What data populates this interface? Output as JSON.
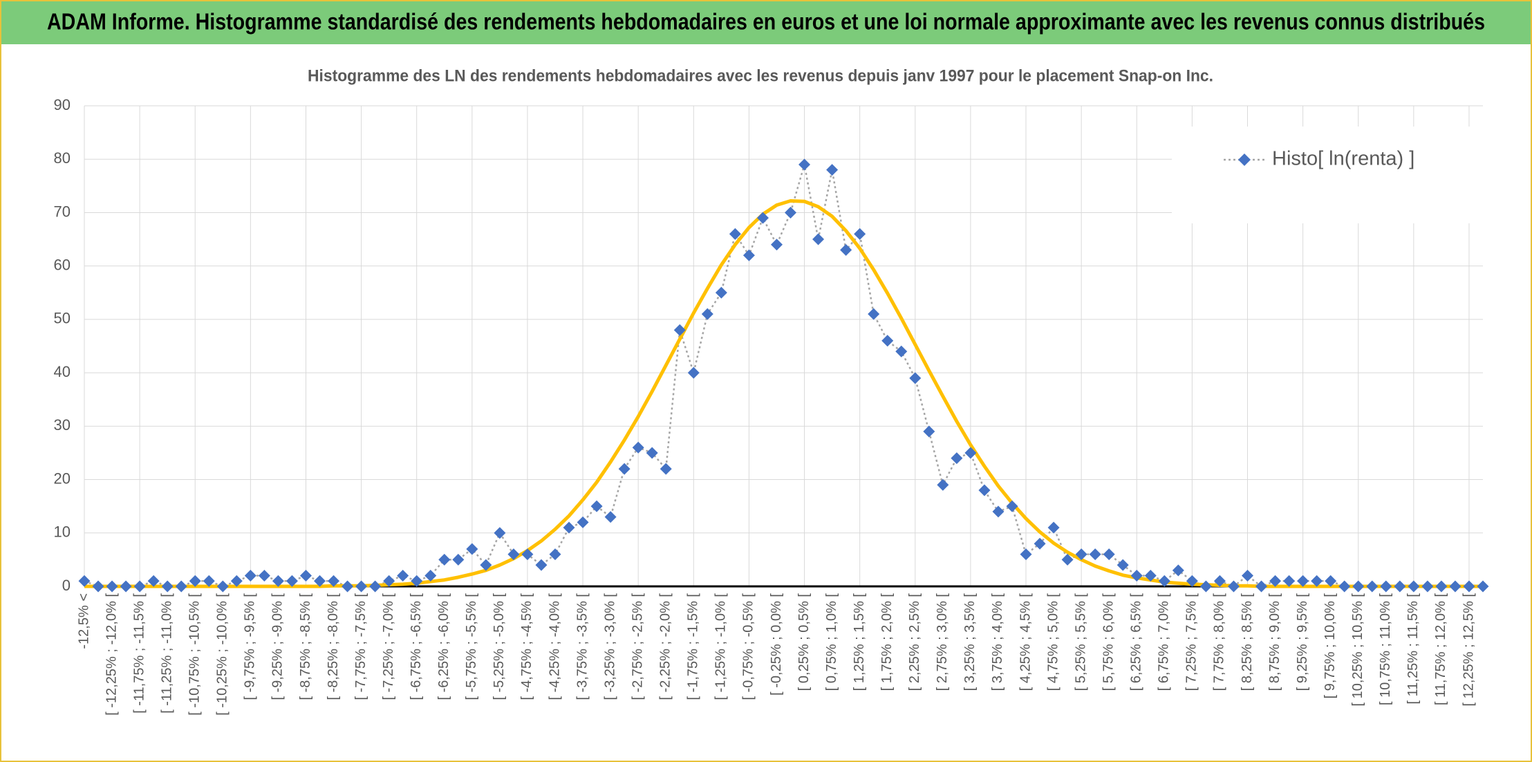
{
  "header": {
    "title": "ADAM Informe. Histogramme standardisé des rendements hebdomadaires en euros et une loi normale approximante avec les revenus connus distribués"
  },
  "chart_data": {
    "type": "line",
    "title": "Histogramme des LN des rendements hebdomadaires avec les revenus depuis janv 1997 pour le placement Snap-on Inc.",
    "categories": [
      "-12,5% <",
      null,
      "[ -12,25% ; -12,0% [",
      null,
      "[ -11,75% ; -11,5% [",
      null,
      "[ -11,25% ; -11,0% [",
      null,
      "[ -10,75% ; -10,5% [",
      null,
      "[ -10,25% ; -10,0% [",
      null,
      "[ -9,75% ; -9,5% [",
      null,
      "[ -9,25% ; -9,0% [",
      null,
      "[ -8,75% ; -8,5% [",
      null,
      "[ -8,25% ; -8,0% [",
      null,
      "[ -7,75% ; -7,5% [",
      null,
      "[ -7,25% ; -7,0% [",
      null,
      "[ -6,75% ; -6,5% [",
      null,
      "[ -6,25% ; -6,0% [",
      null,
      "[ -5,75% ; -5,5% [",
      null,
      "[ -5,25% ; -5,0% [",
      null,
      "[ -4,75% ; -4,5% [",
      null,
      "[ -4,25% ; -4,0% [",
      null,
      "[ -3,75% ; -3,5% [",
      null,
      "[ -3,25% ; -3,0% [",
      null,
      "[ -2,75% ; -2,5% [",
      null,
      "[ -2,25% ; -2,0% [",
      null,
      "[ -1,75% ; -1,5% [",
      null,
      "[ -1,25% ; -1,0% [",
      null,
      "[ -0,75% ; -0,5% [",
      null,
      "[ -0,25% ; 0,0% [",
      null,
      "[ 0,25% ; 0,5% [",
      null,
      "[ 0,75% ; 1,0% [",
      null,
      "[ 1,25% ; 1,5% [",
      null,
      "[ 1,75% ; 2,0% [",
      null,
      "[ 2,25% ; 2,5% [",
      null,
      "[ 2,75% ; 3,0% [",
      null,
      "[ 3,25% ; 3,5% [",
      null,
      "[ 3,75% ; 4,0% [",
      null,
      "[ 4,25% ; 4,5% [",
      null,
      "[ 4,75% ; 5,0% [",
      null,
      "[ 5,25% ; 5,5% [",
      null,
      "[ 5,75% ; 6,0% [",
      null,
      "[ 6,25% ; 6,5% [",
      null,
      "[ 6,75% ; 7,0% [",
      null,
      "[ 7,25% ; 7,5% [",
      null,
      "[ 7,75% ; 8,0% [",
      null,
      "[ 8,25% ; 8,5% [",
      null,
      "[ 8,75% ; 9,0% [",
      null,
      "[ 9,25% ; 9,5% [",
      null,
      "[ 9,75% ; 10,0% [",
      null,
      "[ 10,25% ; 10,5% [",
      null,
      "[ 10,75% ; 11,0% [",
      null,
      "[ 11,25% ; 11,5% [",
      null,
      "[ 11,75% ; 12,0% [",
      null,
      "[ 12,25% ; 12,5% [",
      null
    ],
    "series": [
      {
        "name": "Histo[ ln(renta) ]",
        "color": "#4472c4",
        "line_color": "#a5a5a5",
        "line_style": "dotted",
        "marker": "diamond",
        "values": [
          1,
          0,
          0,
          0,
          0,
          1,
          0,
          0,
          1,
          1,
          0,
          1,
          2,
          2,
          1,
          1,
          2,
          1,
          1,
          0,
          0,
          0,
          1,
          2,
          1,
          2,
          5,
          5,
          7,
          4,
          10,
          6,
          6,
          4,
          6,
          11,
          12,
          15,
          13,
          22,
          26,
          25,
          22,
          48,
          40,
          51,
          55,
          66,
          62,
          69,
          64,
          70,
          79,
          65,
          78,
          63,
          66,
          51,
          46,
          44,
          39,
          29,
          19,
          24,
          25,
          18,
          14,
          15,
          6,
          8,
          11,
          5,
          6,
          6,
          6,
          4,
          2,
          2,
          1,
          3,
          1,
          0,
          1,
          0,
          2,
          0,
          1,
          1,
          1,
          1,
          1,
          0,
          0,
          0,
          0,
          0,
          0,
          0,
          0,
          0,
          0,
          0
        ]
      },
      {
        "color": "#ffc000",
        "line_style": "solid",
        "values": [
          0,
          0,
          0,
          0,
          0,
          0,
          0,
          0,
          0,
          0,
          0,
          0,
          0,
          0,
          0,
          0,
          0,
          0,
          0.1,
          0.1,
          0.1,
          0.2,
          0.3,
          0.4,
          0.6,
          0.9,
          1.2,
          1.7,
          2.3,
          3.0,
          4.0,
          5.2,
          6.7,
          8.5,
          10.7,
          13.2,
          16.2,
          19.5,
          23.3,
          27.4,
          31.8,
          36.5,
          41.4,
          46.3,
          51.2,
          55.8,
          60.2,
          64.0,
          67.2,
          69.7,
          71.4,
          72.2,
          72.1,
          71.1,
          69.3,
          66.6,
          63.3,
          59.3,
          54.9,
          50.2,
          45.3,
          40.4,
          35.6,
          30.9,
          26.5,
          22.5,
          18.8,
          15.6,
          12.7,
          10.2,
          8.1,
          6.4,
          5.0,
          3.8,
          2.9,
          2.1,
          1.6,
          1.2,
          0.8,
          0.6,
          0.4,
          0.3,
          0.2,
          0.1,
          0.1,
          0,
          0,
          0,
          0,
          0,
          0,
          0,
          0,
          0,
          0,
          0,
          0,
          0,
          0,
          0,
          0,
          0
        ]
      }
    ],
    "ylim": [
      0,
      90
    ],
    "yticks": [
      0,
      10,
      20,
      30,
      40,
      50,
      60,
      70,
      80,
      90
    ],
    "grid": true,
    "legend": "top-right"
  }
}
